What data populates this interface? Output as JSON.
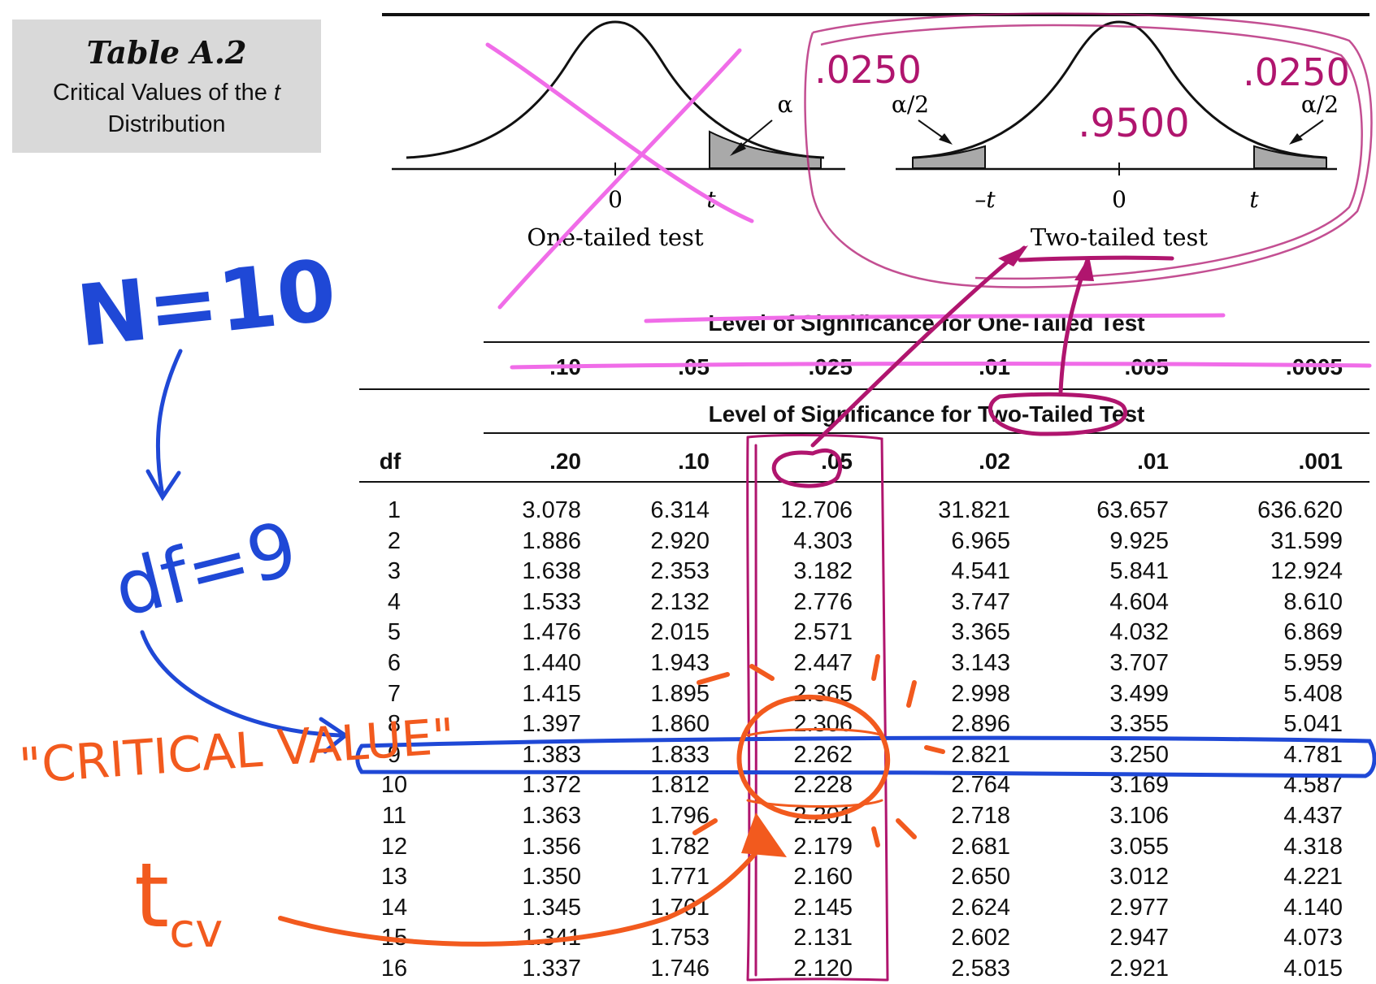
{
  "table": {
    "title": "Table A.2",
    "subtitle_pre": "Critical Values of the ",
    "subtitle_t": "t",
    "subtitle_post": "Distribution",
    "one_tailed_header": "Level of Significance for One-Tailed Test",
    "two_tailed_header": "Level of Significance for Two-Tailed Test",
    "df_label": "df",
    "one_tailed_levels": [
      ".10",
      ".05",
      ".025",
      ".01",
      ".005",
      ".0005"
    ],
    "two_tailed_levels": [
      ".20",
      ".10",
      ".05",
      ".02",
      ".01",
      ".001"
    ],
    "rows": [
      {
        "df": "1",
        "values": [
          "3.078",
          "6.314",
          "12.706",
          "31.821",
          "63.657",
          "636.620"
        ]
      },
      {
        "df": "2",
        "values": [
          "1.886",
          "2.920",
          "4.303",
          "6.965",
          "9.925",
          "31.599"
        ]
      },
      {
        "df": "3",
        "values": [
          "1.638",
          "2.353",
          "3.182",
          "4.541",
          "5.841",
          "12.924"
        ]
      },
      {
        "df": "4",
        "values": [
          "1.533",
          "2.132",
          "2.776",
          "3.747",
          "4.604",
          "8.610"
        ]
      },
      {
        "df": "5",
        "values": [
          "1.476",
          "2.015",
          "2.571",
          "3.365",
          "4.032",
          "6.869"
        ]
      },
      {
        "df": "6",
        "values": [
          "1.440",
          "1.943",
          "2.447",
          "3.143",
          "3.707",
          "5.959"
        ]
      },
      {
        "df": "7",
        "values": [
          "1.415",
          "1.895",
          "2.365",
          "2.998",
          "3.499",
          "5.408"
        ]
      },
      {
        "df": "8",
        "values": [
          "1.397",
          "1.860",
          "2.306",
          "2.896",
          "3.355",
          "5.041"
        ]
      },
      {
        "df": "9",
        "values": [
          "1.383",
          "1.833",
          "2.262",
          "2.821",
          "3.250",
          "4.781"
        ]
      },
      {
        "df": "10",
        "values": [
          "1.372",
          "1.812",
          "2.228",
          "2.764",
          "3.169",
          "4.587"
        ]
      },
      {
        "df": "11",
        "values": [
          "1.363",
          "1.796",
          "2.201",
          "2.718",
          "3.106",
          "4.437"
        ]
      },
      {
        "df": "12",
        "values": [
          "1.356",
          "1.782",
          "2.179",
          "2.681",
          "3.055",
          "4.318"
        ]
      },
      {
        "df": "13",
        "values": [
          "1.350",
          "1.771",
          "2.160",
          "2.650",
          "3.012",
          "4.221"
        ]
      },
      {
        "df": "14",
        "values": [
          "1.345",
          "1.761",
          "2.145",
          "2.624",
          "2.977",
          "4.140"
        ]
      },
      {
        "df": "15",
        "values": [
          "1.341",
          "1.753",
          "2.131",
          "2.602",
          "2.947",
          "4.073"
        ]
      },
      {
        "df": "16",
        "values": [
          "1.337",
          "1.746",
          "2.120",
          "2.583",
          "2.921",
          "4.015"
        ]
      }
    ]
  },
  "figures": {
    "one_tailed": {
      "alpha": "α",
      "zero": "0",
      "t": "t",
      "caption": "One-tailed test"
    },
    "two_tailed": {
      "alpha_half": "α/2",
      "neg_t": "–t",
      "zero": "0",
      "t": "t",
      "caption": "Two-tailed test"
    }
  },
  "annotations": {
    "n": "N=10",
    "df": "df=9",
    "critical_value": "\"CRITICAL VALUE\"",
    "t_cv": "t",
    "t_cv_sub": "cv",
    "left_tail": ".0250",
    "right_tail": ".0250",
    "center": ".9500"
  },
  "colors": {
    "ink": "#111111",
    "shade": "#a9a9a9",
    "pink": "#f06ce8",
    "magenta": "#b0156e",
    "blue": "#1f48d6",
    "orange": "#f25a1e"
  }
}
